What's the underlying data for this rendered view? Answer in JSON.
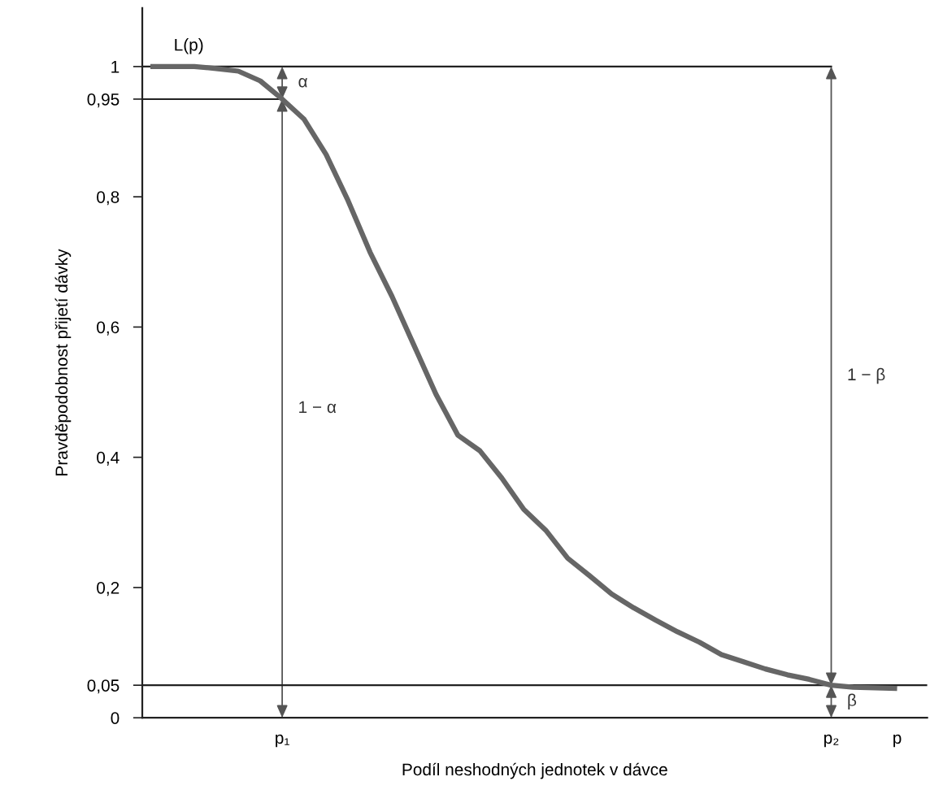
{
  "chart_data": {
    "type": "line",
    "xlabel": "Podíl neshodných jednotek v dávce",
    "ylabel": "Pravděpodobnost přijetí dávky",
    "categories": [
      null,
      null,
      null,
      null,
      null,
      null,
      "p₁",
      null,
      null,
      null,
      null,
      null,
      null,
      null,
      null,
      null,
      null,
      null,
      null,
      null,
      null,
      null,
      null,
      null,
      null,
      null,
      null,
      null,
      null,
      null,
      null,
      "p₂",
      null,
      null,
      "p"
    ],
    "series": [
      {
        "color": "#666666",
        "values": [
          1.0,
          1.0,
          1.0,
          0.997,
          0.993,
          0.978,
          0.95,
          0.919,
          0.865,
          0.794,
          0.715,
          0.647,
          0.572,
          0.497,
          0.434,
          0.41,
          0.368,
          0.32,
          0.288,
          0.245,
          0.218,
          0.19,
          0.169,
          0.15,
          0.132,
          0.116,
          0.097,
          0.086,
          0.075,
          0.066,
          0.059,
          0.05,
          0.047,
          0.046,
          0.045
        ]
      }
    ],
    "ylim": [
      0,
      1.09
    ],
    "yticks": [
      {
        "value": 0,
        "label": "0"
      },
      {
        "value": 0.05,
        "label": "0,05"
      },
      {
        "value": 0.2,
        "label": "0,2"
      },
      {
        "value": 0.4,
        "label": "0,4"
      },
      {
        "value": 0.6,
        "label": "0,6"
      },
      {
        "value": 0.8,
        "label": "0,8"
      },
      {
        "value": 0.95,
        "label": "0,95"
      },
      {
        "value": 1,
        "label": "1"
      }
    ],
    "ref_lines": [
      {
        "axis": "y",
        "value": 1
      },
      {
        "axis": "y",
        "value": 0.95
      },
      {
        "axis": "y",
        "value": 0.05
      }
    ],
    "annotations": [
      "L(p)",
      "α",
      "1 − α",
      "1 − β",
      "β"
    ],
    "grid": false,
    "legend": false,
    "marker": "none",
    "line_style": "solid"
  }
}
